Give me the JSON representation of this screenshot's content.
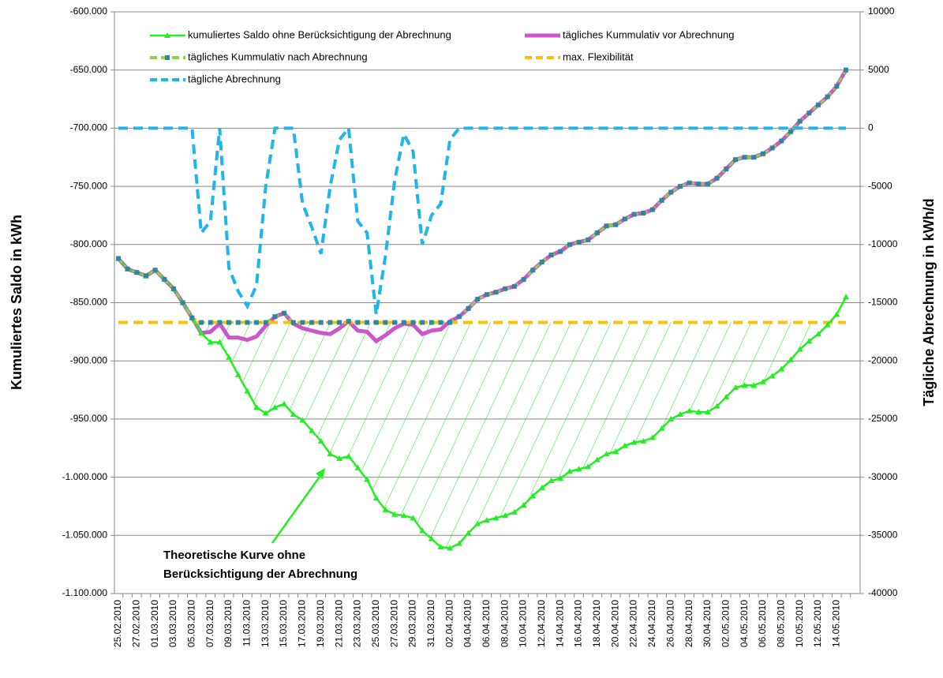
{
  "chart_data": {
    "type": "line",
    "y_label": "Kumuliertes Saldo in kWh",
    "y2_label": "Tägliche Abrechnung in kWh/d",
    "annotation": [
      "Theoretische Kurve ohne",
      "Berücksichtigung der Abrechnung"
    ],
    "grid": true,
    "ylim": [
      -1100000,
      -600000
    ],
    "yticks": [
      {
        "value": -600000,
        "label": "-600.000"
      },
      {
        "value": -650000,
        "label": "-650.000"
      },
      {
        "value": -700000,
        "label": "-700.000"
      },
      {
        "value": -750000,
        "label": "-750.000"
      },
      {
        "value": -800000,
        "label": "-800.000"
      },
      {
        "value": -850000,
        "label": "-850.000"
      },
      {
        "value": -900000,
        "label": "-900.000"
      },
      {
        "value": -950000,
        "label": "-950.000"
      },
      {
        "value": -1000000,
        "label": "-1.000.000"
      },
      {
        "value": -1050000,
        "label": "-1.050.000"
      },
      {
        "value": -1100000,
        "label": "-1.100.000"
      }
    ],
    "y2lim": [
      -40000,
      10000
    ],
    "y2ticks": [
      10000,
      5000,
      0,
      -5000,
      -10000,
      -15000,
      -20000,
      -25000,
      -30000,
      -35000,
      -40000
    ],
    "categories": [
      "25.02.2010",
      null,
      "27.02.2010",
      null,
      "01.03.2010",
      null,
      "03.03.2010",
      null,
      "05.03.2010",
      null,
      "07.03.2010",
      null,
      "09.03.2010",
      null,
      "11.03.2010",
      null,
      "13.03.2010",
      null,
      "15.03.2010",
      null,
      "17.03.2010",
      null,
      "19.03.2010",
      null,
      "21.03.2010",
      null,
      "23.03.2010",
      null,
      "25.03.2010",
      null,
      "27.03.2010",
      null,
      "29.03.2010",
      null,
      "31.03.2010",
      null,
      "02.04.2010",
      null,
      "04.04.2010",
      null,
      "06.04.2010",
      null,
      "08.04.2010",
      null,
      "10.04.2010",
      null,
      "12.04.2010",
      null,
      "14.04.2010",
      null,
      "16.04.2010",
      null,
      "18.04.2010",
      null,
      "20.04.2010",
      null,
      "22.04.2010",
      null,
      "24.04.2010",
      null,
      "26.04.2010",
      null,
      "28.04.2010",
      null,
      "30.04.2010",
      null,
      "02.05.2010",
      null,
      "04.05.2010",
      null,
      "06.05.2010",
      null,
      "08.05.2010",
      null,
      "10.05.2010",
      null,
      "12.05.2010",
      null,
      "14.05.2010",
      null
    ],
    "series": [
      {
        "name": "kumuliertes Saldo ohne Berücksichtigung der Abrechnung",
        "color": "#22ee22",
        "style": "solid",
        "marker": "triangle",
        "values": [
          -812000,
          -821000,
          -824000,
          -827000,
          -822000,
          -830000,
          -838000,
          -850000,
          -863000,
          -876000,
          -884000,
          -884000,
          -897000,
          -912000,
          -926000,
          -940000,
          -945000,
          -940000,
          -937000,
          -946000,
          -951000,
          -960000,
          -969000,
          -980000,
          -984000,
          -982000,
          -992000,
          -1002000,
          -1018000,
          -1028000,
          -1032000,
          -1033000,
          -1035000,
          -1046000,
          -1053000,
          -1060000,
          -1061000,
          -1057000,
          -1048000,
          -1040000,
          -1037000,
          -1035000,
          -1033000,
          -1030000,
          -1024000,
          -1016000,
          -1009000,
          -1003000,
          -1001000,
          -995000,
          -993000,
          -991000,
          -985000,
          -980000,
          -978000,
          -973000,
          -970000,
          -969000,
          -966000,
          -958000,
          -950000,
          -946000,
          -943000,
          -944000,
          -944000,
          -939000,
          -931000,
          -923000,
          -921000,
          -921000,
          -918000,
          -913000,
          -907000,
          -899000,
          -890000,
          -883000,
          -877000,
          -869000,
          -860000,
          -845000
        ]
      },
      {
        "name": "tägliches Kummulativ  vor Abrechnung",
        "color": "#cc55cc",
        "style": "solid",
        "values": [
          -812000,
          -821000,
          -824000,
          -827000,
          -822000,
          -830000,
          -838000,
          -850000,
          -863000,
          -876000,
          -875000,
          -868000,
          -880000,
          -880000,
          -882000,
          -879000,
          -870000,
          -862000,
          -859000,
          -868000,
          -872000,
          -874000,
          -876000,
          -877000,
          -872000,
          -866000,
          -874000,
          -875000,
          -883000,
          -878000,
          -872000,
          -868000,
          -869000,
          -877000,
          -874000,
          -873000,
          -866000,
          -862000,
          -855000,
          -847000,
          -843000,
          -841000,
          -838000,
          -836000,
          -830000,
          -822000,
          -815000,
          -809000,
          -806000,
          -800000,
          -798000,
          -796000,
          -790000,
          -784000,
          -783000,
          -778000,
          -774000,
          -773000,
          -770000,
          -762000,
          -755000,
          -750000,
          -747000,
          -748000,
          -748000,
          -743000,
          -735000,
          -727000,
          -725000,
          -725000,
          -722000,
          -717000,
          -711000,
          -703000,
          -694000,
          -687000,
          -680000,
          -673000,
          -664000,
          -650000
        ]
      },
      {
        "name": "tägliches Kummulativ  nach Abrechnung",
        "color": "#92d050",
        "style": "dashed",
        "marker": "square",
        "marker_color": "#31869b",
        "values": [
          -812000,
          -821000,
          -824000,
          -827000,
          -822000,
          -830000,
          -838000,
          -850000,
          -863000,
          -867000,
          -867000,
          -867000,
          -867000,
          -867000,
          -867000,
          -867000,
          -867000,
          -862000,
          -859000,
          -867000,
          -867000,
          -867000,
          -867000,
          -867000,
          -867000,
          -866000,
          -867000,
          -867000,
          -867000,
          -867000,
          -867000,
          -867000,
          -867000,
          -867000,
          -867000,
          -867000,
          -867000,
          -862000,
          -855000,
          -847000,
          -843000,
          -841000,
          -838000,
          -836000,
          -830000,
          -822000,
          -815000,
          -809000,
          -806000,
          -800000,
          -798000,
          -796000,
          -790000,
          -784000,
          -783000,
          -778000,
          -774000,
          -773000,
          -770000,
          -762000,
          -755000,
          -750000,
          -747000,
          -748000,
          -748000,
          -743000,
          -735000,
          -727000,
          -725000,
          -725000,
          -722000,
          -717000,
          -711000,
          -703000,
          -694000,
          -687000,
          -680000,
          -673000,
          -664000,
          -650000
        ]
      },
      {
        "name": "max. Flexibilität",
        "color": "#ffc000",
        "style": "dashed",
        "values": [
          -867000,
          -867000,
          -867000,
          -867000,
          -867000,
          -867000,
          -867000,
          -867000,
          -867000,
          -867000,
          -867000,
          -867000,
          -867000,
          -867000,
          -867000,
          -867000,
          -867000,
          -867000,
          -867000,
          -867000,
          -867000,
          -867000,
          -867000,
          -867000,
          -867000,
          -867000,
          -867000,
          -867000,
          -867000,
          -867000,
          -867000,
          -867000,
          -867000,
          -867000,
          -867000,
          -867000,
          -867000,
          -867000,
          -867000,
          -867000,
          -867000,
          -867000,
          -867000,
          -867000,
          -867000,
          -867000,
          -867000,
          -867000,
          -867000,
          -867000,
          -867000,
          -867000,
          -867000,
          -867000,
          -867000,
          -867000,
          -867000,
          -867000,
          -867000,
          -867000,
          -867000,
          -867000,
          -867000,
          -867000,
          -867000,
          -867000,
          -867000,
          -867000,
          -867000,
          -867000,
          -867000,
          -867000,
          -867000,
          -867000,
          -867000,
          -867000,
          -867000,
          -867000,
          -867000,
          -867000
        ]
      },
      {
        "name": "tägliche Abrechnung",
        "color": "#1fb5ea",
        "style": "dashed",
        "axis": "y2",
        "values": [
          0,
          0,
          0,
          0,
          0,
          0,
          0,
          0,
          0,
          -9000,
          -8000,
          0,
          -12000,
          -14000,
          -15300,
          -13500,
          -5000,
          0,
          0,
          0,
          -6500,
          -8500,
          -10800,
          -5000,
          -1000,
          0,
          -8000,
          -9000,
          -16000,
          -11000,
          -4500,
          -500,
          -2000,
          -10000,
          -7500,
          -6500,
          -1000,
          0,
          0,
          0,
          0,
          0,
          0,
          0,
          0,
          0,
          0,
          0,
          0,
          0,
          0,
          0,
          0,
          0,
          0,
          0,
          0,
          0,
          0,
          0,
          0,
          0,
          0,
          0,
          0,
          0,
          0,
          0,
          0,
          0,
          0,
          0,
          0,
          0,
          0,
          0,
          0,
          0,
          0,
          0
        ]
      }
    ]
  }
}
